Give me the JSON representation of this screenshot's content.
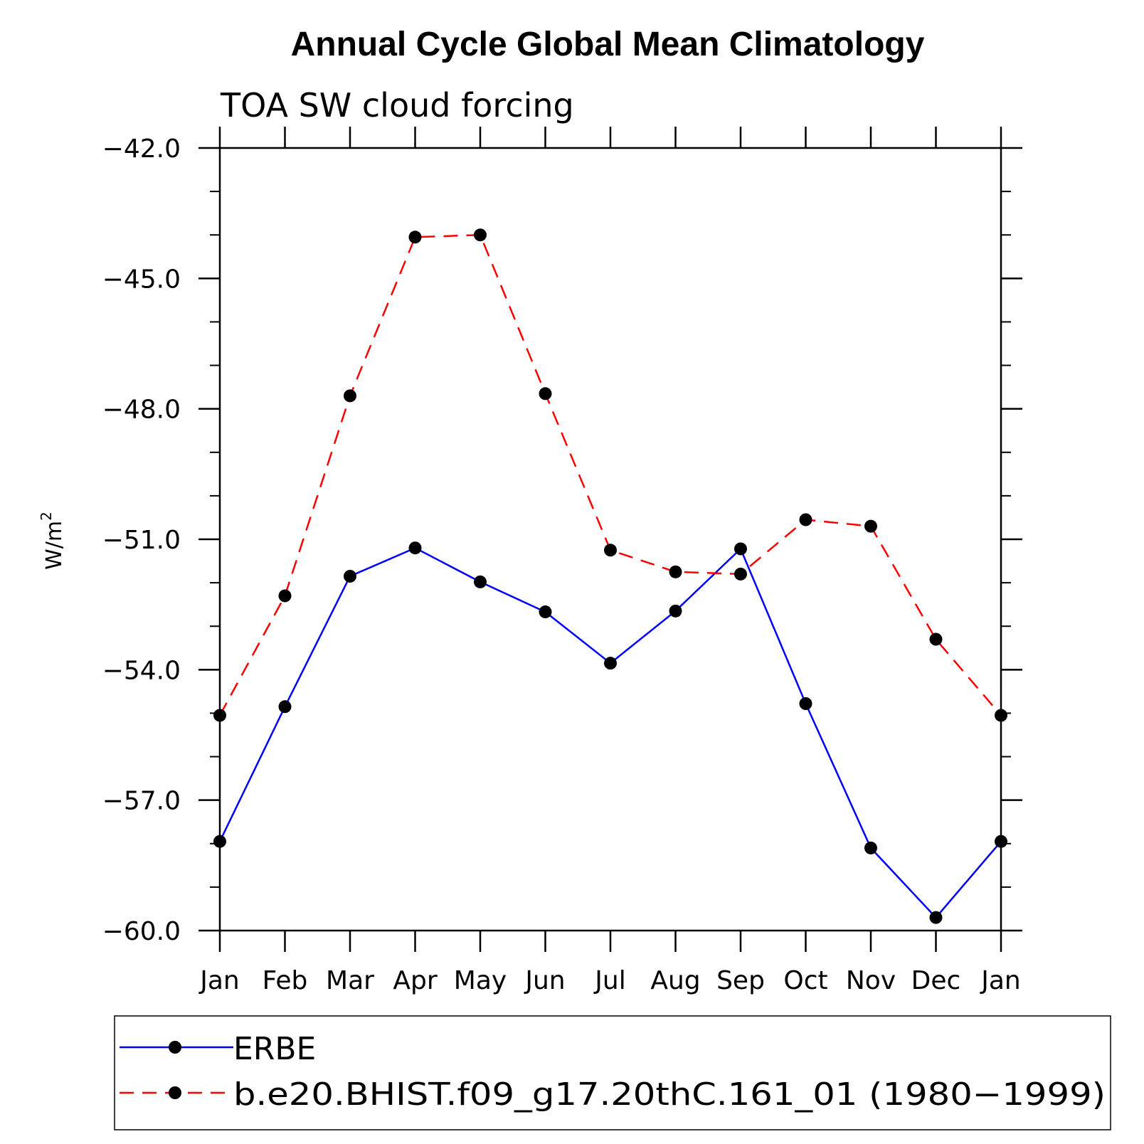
{
  "title": "Annual Cycle Global Mean Climatology",
  "chart_data": {
    "type": "line",
    "title": "Annual Cycle Global Mean Climatology",
    "subtitle": "TOA SW cloud forcing",
    "xlabel": "",
    "ylabel": "W/m",
    "ylabel_superscript": "2",
    "categories": [
      "Jan",
      "Feb",
      "Mar",
      "Apr",
      "May",
      "Jun",
      "Jul",
      "Aug",
      "Sep",
      "Oct",
      "Nov",
      "Dec",
      "Jan"
    ],
    "ylim": [
      -60.0,
      -42.0
    ],
    "yticks": [
      -42.0,
      -45.0,
      -48.0,
      -51.0,
      -54.0,
      -57.0,
      -60.0
    ],
    "ytick_labels": [
      "−42.0",
      "−45.0",
      "−48.0",
      "−51.0",
      "−54.0",
      "−57.0",
      "−60.0"
    ],
    "y_minor_step": 1.0,
    "grid": false,
    "legend_position": "bottom",
    "series": [
      {
        "name": "ERBE",
        "color": "#0000ff",
        "dash": "solid",
        "values": [
          -57.95,
          -54.85,
          -51.85,
          -51.2,
          -51.98,
          -52.67,
          -53.85,
          -52.65,
          -51.22,
          -54.78,
          -58.1,
          -59.7,
          -57.95
        ]
      },
      {
        "name": "b.e20.BHIST.f09_g17.20thC.161_01 (1980−1999)",
        "color": "#ff0000",
        "dash": "dashed",
        "values": [
          -55.05,
          -52.3,
          -47.7,
          -44.05,
          -44.0,
          -47.65,
          -51.25,
          -51.75,
          -51.8,
          -50.55,
          -50.7,
          -53.3,
          -55.05
        ]
      }
    ]
  }
}
